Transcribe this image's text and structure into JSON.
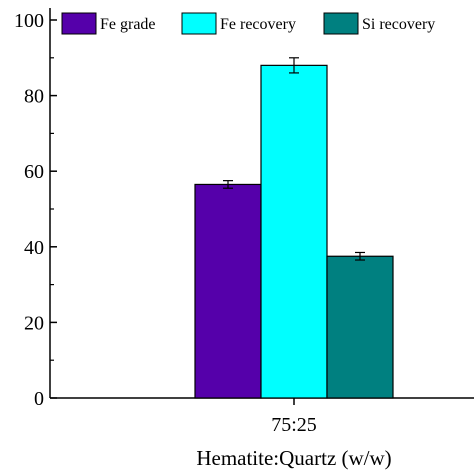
{
  "chart_data": {
    "type": "bar",
    "categories": [
      "75:25"
    ],
    "series": [
      {
        "name": "Fe grade",
        "values": [
          56.5
        ],
        "error": [
          1.0
        ],
        "color": "#5500aa"
      },
      {
        "name": "Fe recovery",
        "values": [
          88.0
        ],
        "error": [
          2.0
        ],
        "color": "#00ffff"
      },
      {
        "name": "Si recovery",
        "values": [
          37.5
        ],
        "error": [
          1.0
        ],
        "color": "#008080"
      }
    ],
    "title": "",
    "xlabel": "Hematite:Quartz (w/w)",
    "ylabel": "",
    "ylim": [
      0,
      100
    ],
    "yticks": [
      0,
      20,
      40,
      60,
      80,
      100
    ],
    "grid": false,
    "legend_position": "top"
  }
}
